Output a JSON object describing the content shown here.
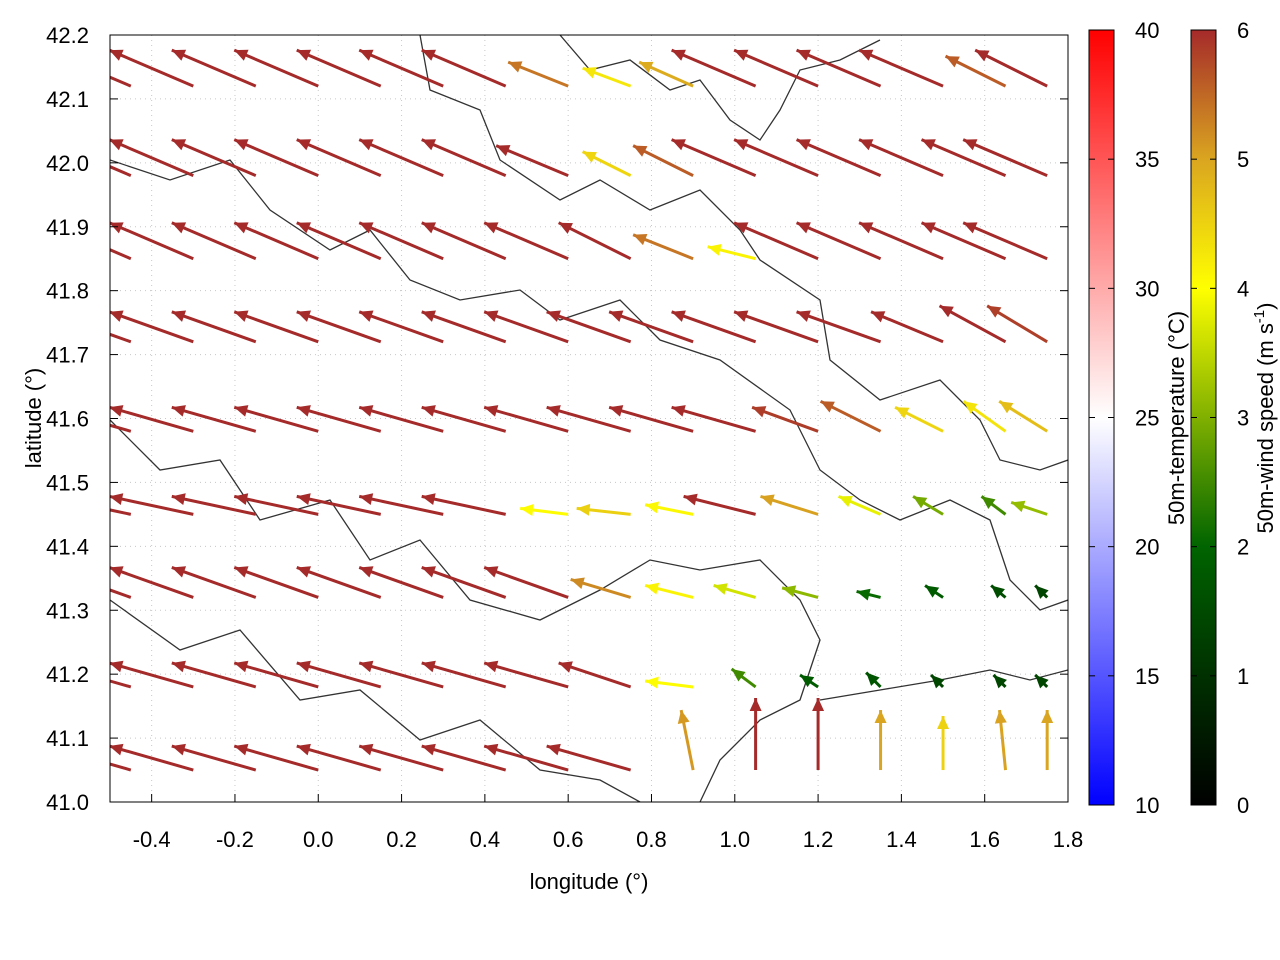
{
  "chart_data": {
    "type": "vector-field",
    "xlabel": "longitude (°)",
    "ylabel": "latitude (°)",
    "xlim": [
      -0.5,
      1.8
    ],
    "ylim": [
      41.0,
      42.2
    ],
    "xticks": [
      "-0.4",
      "-0.2",
      "0.0",
      "0.2",
      "0.4",
      "0.6",
      "0.8",
      "1.0",
      "1.2",
      "1.4",
      "1.6",
      "1.8"
    ],
    "yticks": [
      "41.0",
      "41.1",
      "41.2",
      "41.3",
      "41.4",
      "41.5",
      "41.6",
      "41.7",
      "41.8",
      "41.9",
      "42.0",
      "42.1",
      "42.2"
    ],
    "grid": true,
    "contours": true,
    "colorbars": [
      {
        "label": "50m-temperature (°C)",
        "range": [
          10,
          40
        ],
        "ticks": [
          "10",
          "15",
          "20",
          "25",
          "30",
          "35",
          "40"
        ],
        "colors": [
          "#0000ff",
          "#ffffff",
          "#ff0000"
        ]
      },
      {
        "label_main": "50m-wind speed (m s",
        "label_sup": "-1",
        "label_end": ")",
        "range": [
          0,
          6
        ],
        "ticks": [
          "0",
          "1",
          "2",
          "3",
          "4",
          "5",
          "6"
        ],
        "colors": [
          "#000000",
          "#003000",
          "#006400",
          "#80b000",
          "#ffff00",
          "#daa520",
          "#a52a2a"
        ]
      }
    ],
    "vector_lon": [
      -0.45,
      -0.3,
      -0.15,
      0,
      0.15,
      0.3,
      0.45,
      0.6,
      0.75,
      0.9,
      1.05,
      1.2,
      1.35,
      1.5,
      1.65,
      1.75
    ],
    "vector_lat": [
      41.05,
      41.18,
      41.32,
      41.45,
      41.58,
      41.72,
      41.85,
      41.98,
      42.12
    ],
    "vectors_uv": [
      [
        [
          -7,
          2
        ],
        [
          -7,
          2
        ],
        [
          -7,
          2
        ],
        [
          -7,
          2
        ],
        [
          -7,
          2
        ],
        [
          -7,
          2
        ],
        [
          -7,
          2
        ],
        [
          -7,
          2
        ],
        [
          -7,
          2
        ],
        [
          -1,
          5
        ],
        [
          0,
          6
        ],
        [
          0,
          6
        ],
        [
          0,
          5
        ],
        [
          0,
          4.5
        ],
        [
          -0.5,
          5
        ],
        [
          0,
          5
        ]
      ],
      [
        [
          -7,
          2
        ],
        [
          -7,
          2
        ],
        [
          -7,
          2
        ],
        [
          -7,
          2
        ],
        [
          -7,
          2
        ],
        [
          -7,
          2
        ],
        [
          -7,
          2
        ],
        [
          -7,
          2
        ],
        [
          -6,
          2
        ],
        [
          -4,
          0.5
        ],
        [
          -2,
          1.5
        ],
        [
          -1.5,
          1
        ],
        [
          -1.2,
          1.2
        ],
        [
          -1,
          1
        ],
        [
          -1,
          1
        ],
        [
          -1,
          1
        ]
      ],
      [
        [
          -7,
          2.5
        ],
        [
          -7,
          2.5
        ],
        [
          -7,
          2.5
        ],
        [
          -7,
          2.5
        ],
        [
          -7,
          2.5
        ],
        [
          -7,
          2.5
        ],
        [
          -7,
          2.5
        ],
        [
          -7,
          2.5
        ],
        [
          -5,
          1.5
        ],
        [
          -4,
          1
        ],
        [
          -3.5,
          1
        ],
        [
          -3,
          0.8
        ],
        [
          -2,
          0.5
        ],
        [
          -1.5,
          1
        ],
        [
          -1.2,
          1
        ],
        [
          -1,
          1
        ]
      ],
      [
        [
          -7,
          1.5
        ],
        [
          -7,
          1.5
        ],
        [
          -7,
          1.5
        ],
        [
          -7,
          1.5
        ],
        [
          -7,
          1.5
        ],
        [
          -7,
          1.5
        ],
        [
          -7,
          1.5
        ],
        [
          -4,
          0.5
        ],
        [
          -4.5,
          0.5
        ],
        [
          -4,
          0.8
        ],
        [
          -6,
          1.5
        ],
        [
          -4.8,
          1.5
        ],
        [
          -3.5,
          1.5
        ],
        [
          -2.5,
          1.5
        ],
        [
          -2,
          1.5
        ],
        [
          -3,
          1
        ]
      ],
      [
        [
          -7,
          2
        ],
        [
          -7,
          2
        ],
        [
          -7,
          2
        ],
        [
          -7,
          2
        ],
        [
          -7,
          2
        ],
        [
          -7,
          2
        ],
        [
          -7,
          2
        ],
        [
          -7,
          2
        ],
        [
          -7,
          2
        ],
        [
          -7,
          2
        ],
        [
          -7,
          2
        ],
        [
          -5.5,
          2
        ],
        [
          -5,
          2.5
        ],
        [
          -4,
          2
        ],
        [
          -3.5,
          2.5
        ],
        [
          -4,
          2.5
        ]
      ],
      [
        [
          -7,
          2.5
        ],
        [
          -7,
          2.5
        ],
        [
          -7,
          2.5
        ],
        [
          -7,
          2.5
        ],
        [
          -7,
          2.5
        ],
        [
          -7,
          2.5
        ],
        [
          -7,
          2.5
        ],
        [
          -7,
          2.5
        ],
        [
          -7,
          2.5
        ],
        [
          -7,
          2.5
        ],
        [
          -7,
          2.5
        ],
        [
          -7,
          2.5
        ],
        [
          -7,
          2.5
        ],
        [
          -6,
          2.5
        ],
        [
          -5.5,
          3
        ],
        [
          -5,
          3
        ]
      ],
      [
        [
          -7,
          3
        ],
        [
          -7,
          3
        ],
        [
          -7,
          3
        ],
        [
          -7,
          3
        ],
        [
          -7,
          3
        ],
        [
          -7,
          3
        ],
        [
          -7,
          3
        ],
        [
          -7,
          3
        ],
        [
          -6,
          3
        ],
        [
          -5,
          2
        ],
        [
          -4,
          1
        ],
        [
          -7,
          3
        ],
        [
          -7,
          3
        ],
        [
          -7,
          3
        ],
        [
          -7,
          3
        ],
        [
          -7,
          3
        ]
      ],
      [
        [
          -7,
          3
        ],
        [
          -7,
          3
        ],
        [
          -7,
          3
        ],
        [
          -7,
          3
        ],
        [
          -7,
          3
        ],
        [
          -7,
          3
        ],
        [
          -7,
          3
        ],
        [
          -6,
          2.5
        ],
        [
          -4,
          2
        ],
        [
          -5,
          2.5
        ],
        [
          -7,
          3
        ],
        [
          -7,
          3
        ],
        [
          -7,
          3
        ],
        [
          -7,
          3
        ],
        [
          -7,
          3
        ],
        [
          -7,
          3
        ]
      ],
      [
        [
          -7,
          3
        ],
        [
          -7,
          3
        ],
        [
          -7,
          3
        ],
        [
          -7,
          3
        ],
        [
          -7,
          3
        ],
        [
          -7,
          3
        ],
        [
          -7,
          3
        ],
        [
          -5,
          2
        ],
        [
          -4,
          1.5
        ],
        [
          -4.5,
          2
        ],
        [
          -7,
          3
        ],
        [
          -7,
          3
        ],
        [
          -7,
          3
        ],
        [
          -7,
          3
        ],
        [
          -5,
          2.5
        ],
        [
          -6,
          3
        ]
      ]
    ]
  }
}
